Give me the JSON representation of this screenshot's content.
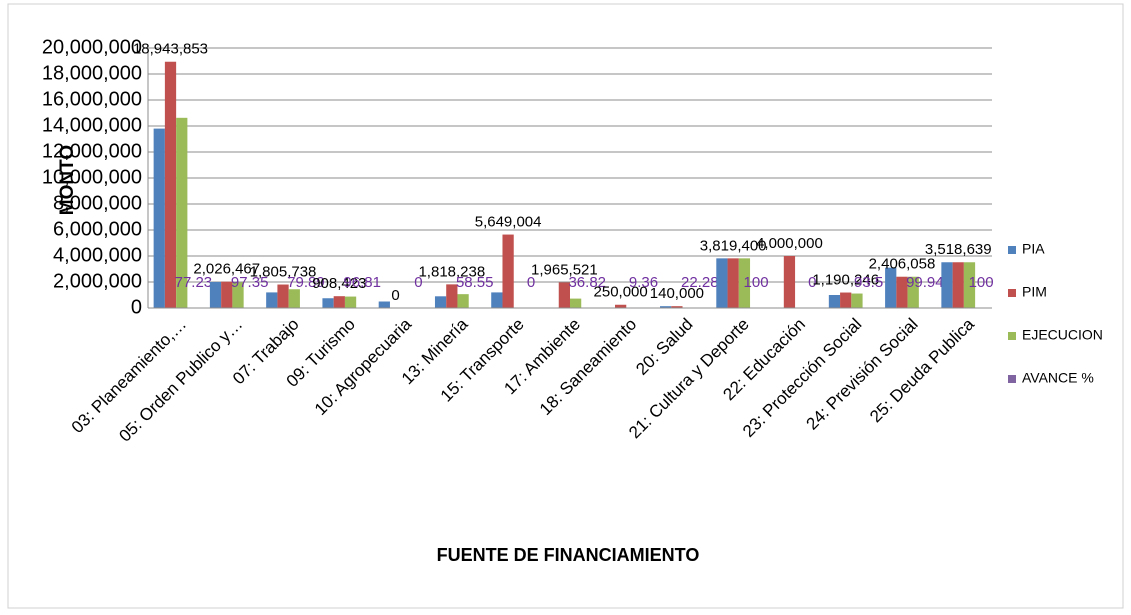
{
  "chart_data": {
    "type": "bar",
    "categories": [
      "03: Planeamiento,…",
      "05: Orden Publico y…",
      "07: Trabajo",
      "09: Turismo",
      "10: Agropecuaria",
      "13: Minería",
      "15: Transporte",
      "17: Ambiente",
      "18: Saneamiento",
      "20: Salud",
      "21: Cultura y Deporte",
      "22: Educación",
      "23: Protección Social",
      "24: Previsión Social",
      "25: Deuda Publica"
    ],
    "series": [
      {
        "name": "PIA",
        "color": "#4f81bd",
        "values": [
          13800000,
          2000000,
          1200000,
          750000,
          500000,
          900000,
          1200000,
          0,
          0,
          140000,
          3819400,
          0,
          1000000,
          3100000,
          3518639
        ]
      },
      {
        "name": "PIM",
        "color": "#c0504d",
        "values": [
          18943853,
          2026467,
          1805738,
          908423,
          0,
          1818238,
          5649004,
          1965521,
          250000,
          140000,
          3819400,
          4000000,
          1190246,
          2406058,
          3518639
        ],
        "value_labels": [
          "18,943,853",
          "2,026,467",
          "1,805,738",
          "908,423",
          "0",
          "1,818,238",
          "5,649,004",
          "1,965,521",
          "250,000",
          "140,000",
          "3,819,400",
          "4,000,000",
          "1,190,246",
          "2,406,058",
          "3,518,639"
        ]
      },
      {
        "name": "EJECUCION",
        "color": "#9bbb59",
        "values": [
          14630000,
          1973000,
          1442600,
          879500,
          0,
          1064600,
          0,
          723700,
          23400,
          31200,
          3819400,
          0,
          1112900,
          2404600,
          3518639
        ]
      },
      {
        "name": "AVANCE %",
        "color": "#8064a2",
        "label_color": "#7030a0",
        "values": [
          77.23,
          97.35,
          79.89,
          96.81,
          0,
          58.55,
          0,
          36.82,
          9.36,
          22.28,
          100,
          0,
          93.5,
          99.94,
          100
        ]
      }
    ],
    "y_label": "MONTO",
    "x_label": "FUENTE DE FINANCIAMIENTO",
    "ylim": [
      0,
      20000000
    ],
    "yticks": [
      {
        "value": 0,
        "label": "0"
      },
      {
        "value": 2000000,
        "label": "2,000,000"
      },
      {
        "value": 4000000,
        "label": "4,000,000"
      },
      {
        "value": 6000000,
        "label": "6,000,000"
      },
      {
        "value": 8000000,
        "label": "8,000,000"
      },
      {
        "value": 10000000,
        "label": "10,000,000"
      },
      {
        "value": 12000000,
        "label": "12,000,000"
      },
      {
        "value": 14000000,
        "label": "14,000,000"
      },
      {
        "value": 16000000,
        "label": "16,000,000"
      },
      {
        "value": 18000000,
        "label": "18,000,000"
      },
      {
        "value": 20000000,
        "label": "20,000,000"
      }
    ],
    "grid": true,
    "legend": "right"
  }
}
